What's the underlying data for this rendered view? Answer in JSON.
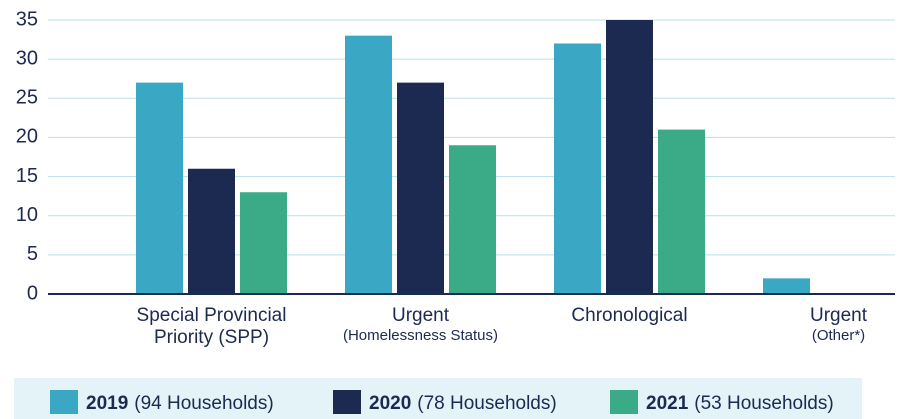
{
  "chart_data": {
    "type": "bar",
    "categories": [
      [
        "Special Provincial",
        "Priority (SPP)"
      ],
      [
        "Urgent",
        "(Homelessness Status)"
      ],
      [
        "Chronological"
      ],
      [
        "Urgent",
        "(Other*)"
      ]
    ],
    "series": [
      {
        "name": "2019",
        "note": "(94 Households)",
        "color": "#3aa8c4",
        "values": [
          27,
          33,
          32,
          2
        ]
      },
      {
        "name": "2020",
        "note": "(78 Households)",
        "color": "#1c2951",
        "values": [
          16,
          27,
          35,
          0
        ]
      },
      {
        "name": "2021",
        "note": "(53 Households)",
        "color": "#3aaa87",
        "values": [
          13,
          19,
          21,
          0
        ]
      }
    ],
    "ylim": [
      0,
      35
    ],
    "yticks": [
      0,
      5,
      10,
      15,
      20,
      25,
      30,
      35
    ],
    "grid": true,
    "legend": "bottom"
  }
}
